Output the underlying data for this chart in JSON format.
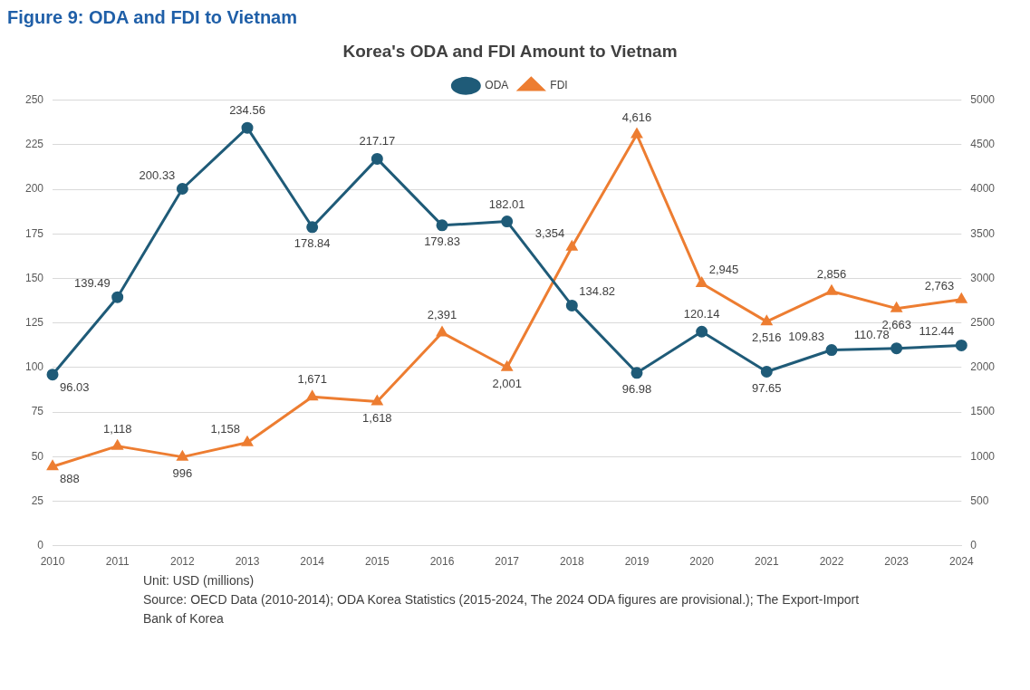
{
  "chart_data": {
    "type": "line",
    "title": "Korea's ODA and FDI Amount to Vietnam",
    "categories": [
      "2010",
      "2011",
      "2012",
      "2013",
      "2014",
      "2015",
      "2016",
      "2017",
      "2018",
      "2019",
      "2020",
      "2021",
      "2022",
      "2023",
      "2024"
    ],
    "series": [
      {
        "name": "ODA",
        "color": "#1f5b78",
        "marker": "circle",
        "values": [
          96.03,
          139.49,
          200.33,
          234.56,
          178.84,
          217.17,
          179.83,
          182.01,
          134.82,
          96.98,
          120.14,
          97.65,
          109.83,
          110.78,
          112.44
        ],
        "value_labels": [
          "96.03",
          "139.49",
          "200.33",
          "234.56",
          "178.84",
          "217.17",
          "179.83",
          "182.01",
          "134.82",
          "96.98",
          "120.14",
          "97.65",
          "109.83",
          "110.78",
          "112.44"
        ]
      },
      {
        "name": "FDI",
        "color": "#ed7d31",
        "marker": "triangle",
        "axis": "y2",
        "values": [
          888,
          1118,
          996,
          1158,
          1671,
          1618,
          2391,
          2001,
          3354,
          4616,
          2945,
          2516,
          2856,
          2663,
          2763
        ],
        "value_labels": [
          "888",
          "1,118",
          "996",
          "1,158",
          "1,671",
          "1,618",
          "2,391",
          "2,001",
          "3,354",
          "4,616",
          "2,945",
          "2,516",
          "2,856",
          "2,663",
          "2,763"
        ]
      }
    ],
    "ylim": [
      0,
      250
    ],
    "yticks": [
      0,
      25,
      50,
      75,
      100,
      125,
      150,
      175,
      200,
      225,
      250
    ],
    "y2lim": [
      0,
      5000
    ],
    "y2ticks": [
      0,
      500,
      1000,
      1500,
      2000,
      2500,
      3000,
      3500,
      4000,
      4500,
      5000
    ],
    "grid": "y",
    "legend": "top",
    "annotations": [
      "Figure 9: ODA and FDI to Vietnam",
      "Unit: USD (millions)",
      "Source: OECD Data (2010-2014); ODA Korea Statistics (2015-2024, The 2024 ODA figures are provisional.); The Export-Import Bank of Korea"
    ]
  }
}
